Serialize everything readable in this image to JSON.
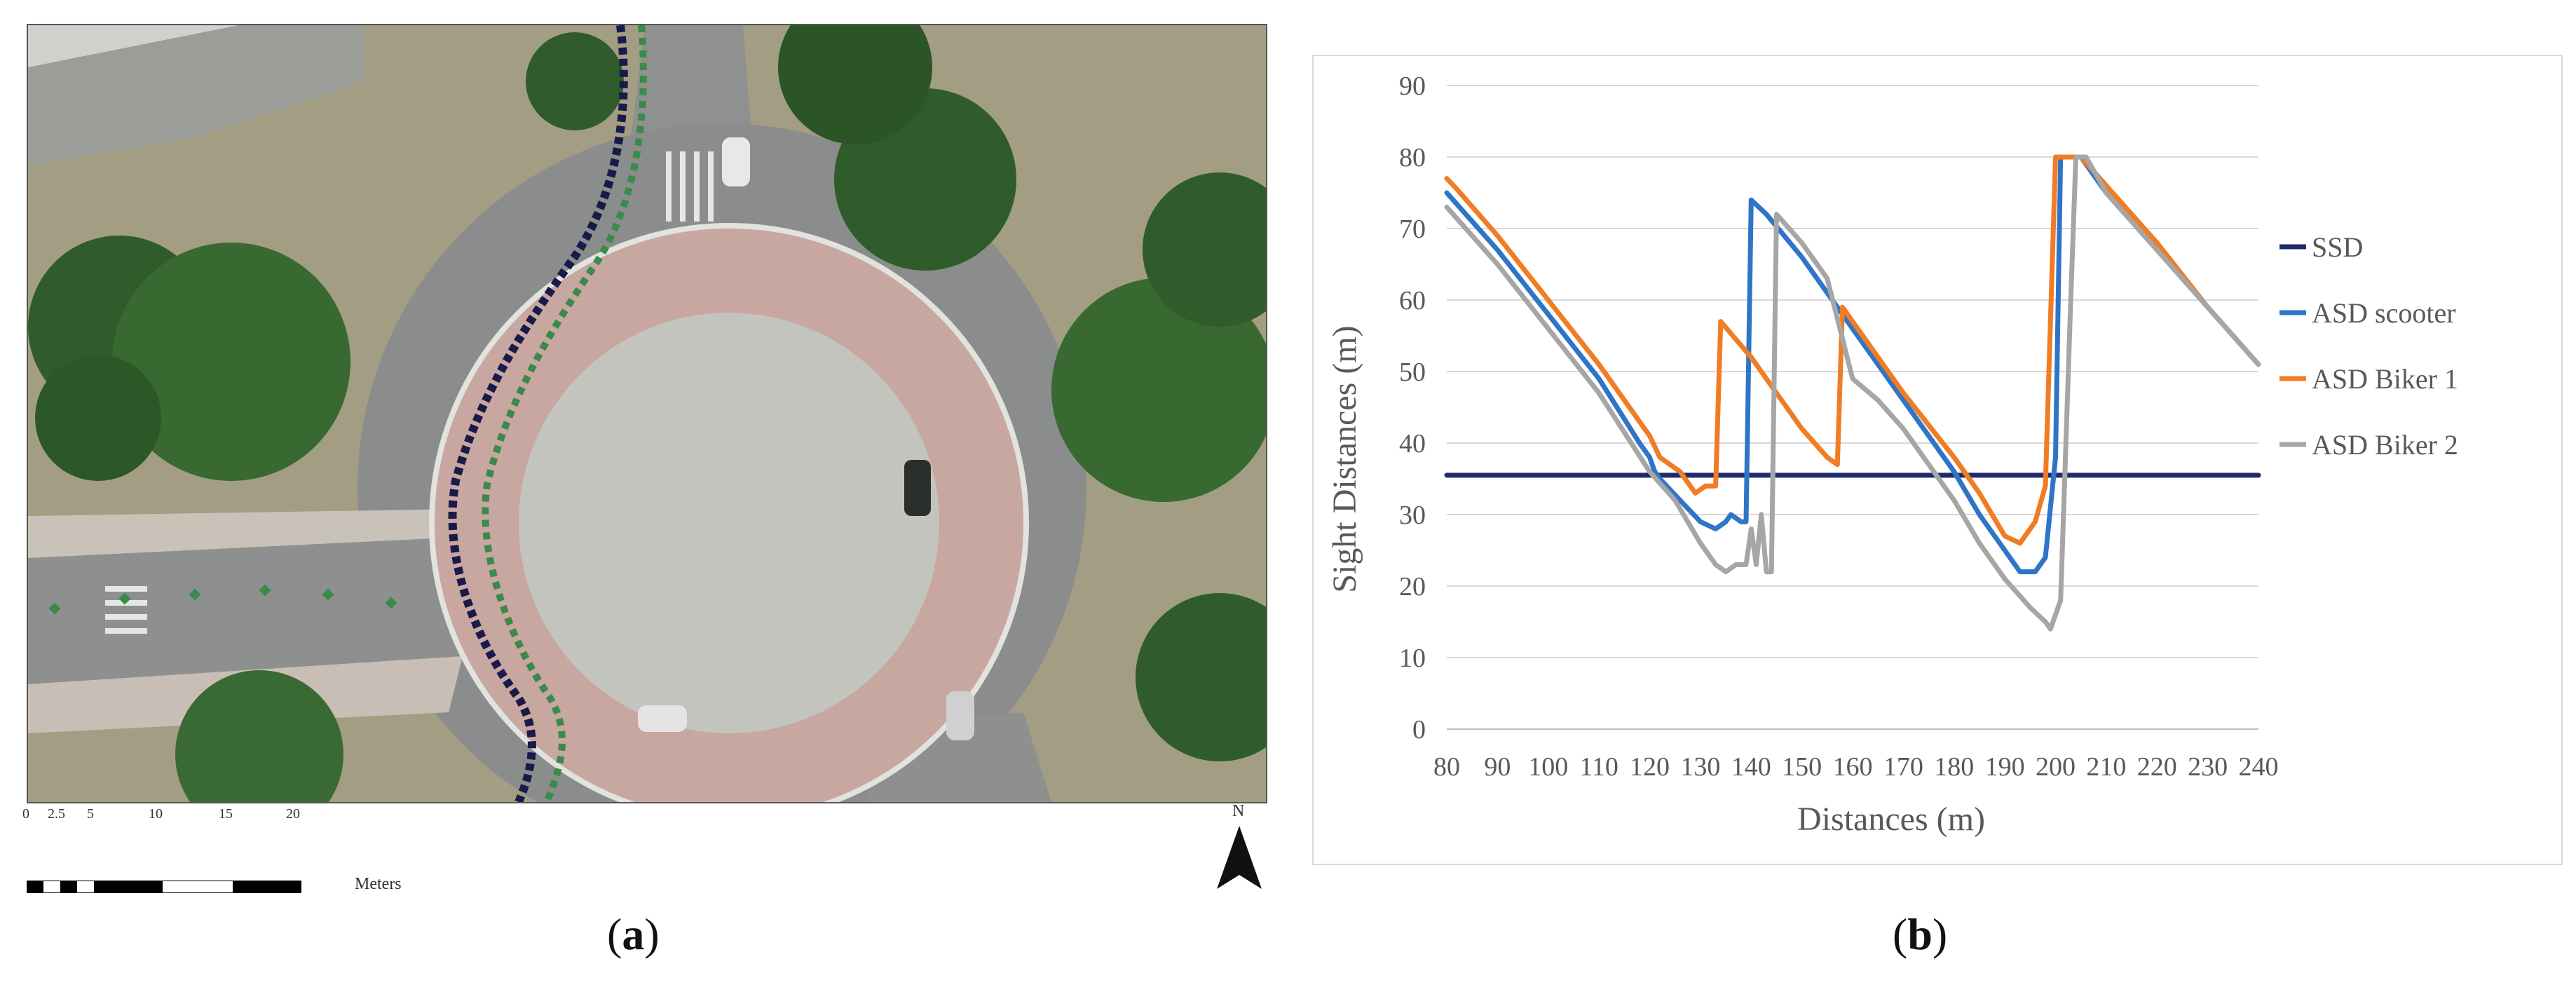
{
  "panel_a": {
    "caption_label": "a",
    "scale_ticks": [
      "0",
      "2.5",
      "5",
      "10",
      "15",
      "20"
    ],
    "scale_unit": "Meters",
    "north_label": "N",
    "colors": {
      "road": "#8d9190",
      "island_ring": "#c9a9a0",
      "island_center": "#c7c7c2",
      "vegetation": "#3d6b33",
      "dry_grass": "#a8a086",
      "path_dark": "#1a1a4a",
      "path_green": "#3a8a4a"
    }
  },
  "panel_b": {
    "caption_label": "b"
  },
  "chart_data": {
    "type": "line",
    "xlabel": "Distances (m)",
    "ylabel": "Sight Distances (m)",
    "xlim": [
      80,
      240
    ],
    "ylim": [
      0,
      90
    ],
    "x_ticks": [
      "80",
      "90",
      "100",
      "110",
      "120",
      "130",
      "140",
      "150",
      "160",
      "170",
      "180",
      "190",
      "200",
      "210",
      "220",
      "230",
      "240"
    ],
    "y_ticks": [
      "0",
      "10",
      "20",
      "30",
      "40",
      "50",
      "60",
      "70",
      "80",
      "90"
    ],
    "grid": "horizontal",
    "legend_position": "right",
    "series": [
      {
        "name": "SSD",
        "color": "#1f2a6b",
        "points": [
          [
            80,
            35.5
          ],
          [
            240,
            35.5
          ]
        ]
      },
      {
        "name": "ASD scooter",
        "color": "#2e75c8",
        "points": [
          [
            80,
            75
          ],
          [
            90,
            67
          ],
          [
            100,
            58
          ],
          [
            110,
            49
          ],
          [
            118,
            40
          ],
          [
            120,
            38
          ],
          [
            121,
            36
          ],
          [
            122,
            35
          ],
          [
            126,
            32
          ],
          [
            130,
            29
          ],
          [
            133,
            28
          ],
          [
            135,
            29
          ],
          [
            136,
            30
          ],
          [
            138,
            29
          ],
          [
            139,
            29
          ],
          [
            140,
            74
          ],
          [
            143,
            72
          ],
          [
            150,
            66
          ],
          [
            160,
            56
          ],
          [
            170,
            46
          ],
          [
            180,
            36
          ],
          [
            185,
            30
          ],
          [
            190,
            25
          ],
          [
            193,
            22
          ],
          [
            196,
            22
          ],
          [
            198,
            24
          ],
          [
            200,
            38
          ],
          [
            201,
            80
          ],
          [
            205,
            80
          ],
          [
            210,
            75
          ],
          [
            220,
            67
          ],
          [
            230,
            59
          ],
          [
            240,
            51
          ]
        ]
      },
      {
        "name": "ASD Biker 1",
        "color": "#f07c24",
        "points": [
          [
            80,
            77
          ],
          [
            82,
            75.5
          ],
          [
            90,
            69
          ],
          [
            100,
            60
          ],
          [
            110,
            51
          ],
          [
            120,
            41
          ],
          [
            122,
            38
          ],
          [
            126,
            36
          ],
          [
            129,
            33
          ],
          [
            131,
            34
          ],
          [
            133,
            34
          ],
          [
            134,
            57
          ],
          [
            140,
            52
          ],
          [
            145,
            47
          ],
          [
            150,
            42
          ],
          [
            155,
            38
          ],
          [
            157,
            37
          ],
          [
            158,
            59
          ],
          [
            160,
            57
          ],
          [
            170,
            47
          ],
          [
            180,
            38
          ],
          [
            185,
            33
          ],
          [
            190,
            27
          ],
          [
            193,
            26
          ],
          [
            196,
            29
          ],
          [
            198,
            34
          ],
          [
            200,
            80
          ],
          [
            205,
            80
          ],
          [
            210,
            76
          ],
          [
            220,
            68
          ],
          [
            230,
            59
          ],
          [
            240,
            51
          ]
        ]
      },
      {
        "name": "ASD Biker 2",
        "color": "#a6a6a6",
        "points": [
          [
            80,
            73
          ],
          [
            90,
            65
          ],
          [
            100,
            56
          ],
          [
            110,
            47
          ],
          [
            120,
            36
          ],
          [
            125,
            32
          ],
          [
            130,
            26
          ],
          [
            133,
            23
          ],
          [
            135,
            22
          ],
          [
            137,
            23
          ],
          [
            139,
            23
          ],
          [
            140,
            28
          ],
          [
            141,
            23
          ],
          [
            142,
            30
          ],
          [
            143,
            22
          ],
          [
            144,
            22
          ],
          [
            145,
            72
          ],
          [
            150,
            68
          ],
          [
            155,
            63
          ],
          [
            160,
            49
          ],
          [
            165,
            46
          ],
          [
            170,
            42
          ],
          [
            180,
            32
          ],
          [
            185,
            26
          ],
          [
            190,
            21
          ],
          [
            195,
            17
          ],
          [
            198,
            15
          ],
          [
            199,
            14
          ],
          [
            201,
            18
          ],
          [
            203,
            60
          ],
          [
            204,
            80
          ],
          [
            206,
            80
          ],
          [
            210,
            75
          ],
          [
            220,
            67
          ],
          [
            230,
            59
          ],
          [
            240,
            51
          ]
        ]
      }
    ]
  }
}
